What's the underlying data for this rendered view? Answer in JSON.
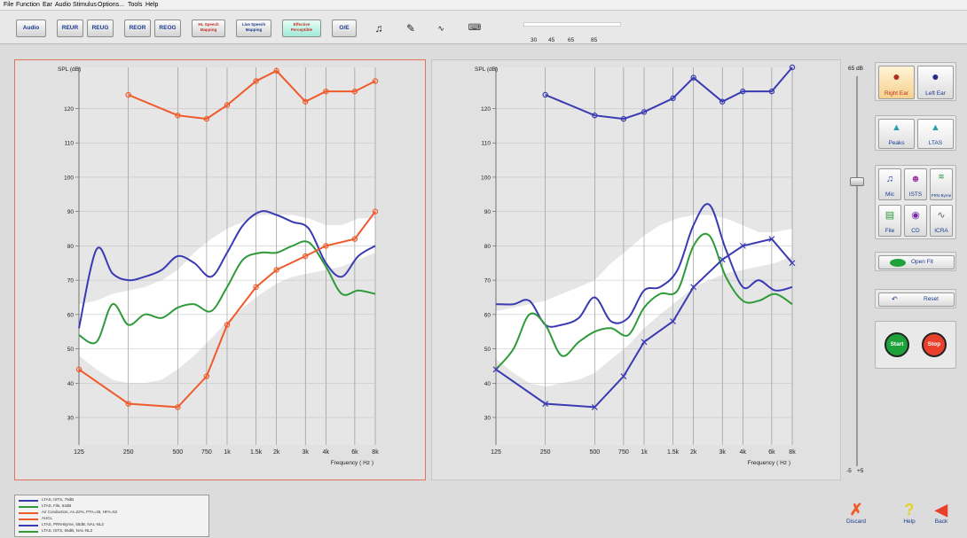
{
  "menu": [
    "File",
    "Function",
    "Ear",
    "Audio",
    "Stimulus",
    "Options...",
    "Tools",
    "Help"
  ],
  "toolbar": {
    "audio_label": "Audio",
    "reur_label": "REUR",
    "reug_label": "REUG",
    "reor_label": "REOR",
    "reog_label": "REOG",
    "hl_speech_mapping_label": "HL Speech Mapping",
    "live_speech_mapping_label": "Live Speech Mapping",
    "effective_perceptible_label": "Effective Perceptible",
    "oe_label": "O/E",
    "audiogram_levels": [
      "30",
      "45",
      "65",
      "85"
    ]
  },
  "left_chart": {
    "ylabel": "SPL (dB)",
    "xlabel": "Frequency ( Hz )"
  },
  "right_chart": {
    "ylabel": "SPL (dB)",
    "xlabel": "Frequency ( Hz )"
  },
  "chart_data": [
    {
      "type": "line",
      "ylabel": "SPL (dB)",
      "xlabel": "Frequency ( Hz )",
      "x_ticks": [
        "125",
        "250",
        "500",
        "750",
        "1k",
        "1.5k",
        "2k",
        "3k",
        "4k",
        "6k",
        "8k"
      ],
      "y_ticks": [
        30,
        40,
        50,
        60,
        70,
        80,
        90,
        100,
        110,
        120
      ],
      "ylim": [
        22,
        132
      ],
      "grid": true,
      "x_scale": "log",
      "shaded_band": {
        "x": [
          125,
          160,
          200,
          250,
          315,
          400,
          500,
          630,
          800,
          1000,
          1250,
          1600,
          2000,
          2500,
          3150,
          4000,
          5000,
          6300,
          8000
        ],
        "upper": [
          63,
          64,
          66,
          67,
          68,
          70,
          73,
          78,
          82,
          85,
          87,
          89,
          89,
          89,
          88,
          86,
          86,
          88,
          88
        ],
        "lower": [
          48,
          44,
          41,
          40,
          40,
          41,
          44,
          48,
          53,
          58,
          62,
          66,
          69,
          71,
          72,
          73,
          74,
          76,
          78
        ]
      },
      "series": [
        {
          "name": "LTAS, ISTS, 79dB",
          "color": "#3a3ab2",
          "x": [
            125,
            160,
            200,
            250,
            315,
            400,
            500,
            630,
            800,
            1000,
            1250,
            1600,
            2000,
            2500,
            3150,
            4000,
            5000,
            6300,
            8000
          ],
          "y": [
            56,
            79,
            72,
            70,
            71,
            73,
            77,
            75,
            71,
            78,
            86,
            90,
            89,
            87,
            85,
            75,
            71,
            77,
            80
          ]
        },
        {
          "name": "LTAS, File, 64dB",
          "color": "#2e9a3a",
          "x": [
            125,
            160,
            200,
            250,
            315,
            400,
            500,
            630,
            800,
            1000,
            1250,
            1600,
            2000,
            2500,
            3150,
            4000,
            5000,
            6300,
            8000
          ],
          "y": [
            54,
            52,
            63,
            57,
            60,
            59,
            62,
            63,
            61,
            68,
            76,
            78,
            78,
            80,
            81,
            74,
            66,
            67,
            66
          ]
        },
        {
          "name": "Air Conduction, AI=22%, PTA=45, HFA=52",
          "color": "#f05a2a",
          "x": [
            125,
            250,
            500,
            750,
            1000,
            1500,
            2000,
            3000,
            4000,
            6000,
            8000
          ],
          "y": [
            44,
            34,
            33,
            42,
            57,
            68,
            73,
            77,
            80,
            82,
            90
          ]
        },
        {
          "name": "AUCL",
          "color": "#f05a2a",
          "x": [
            250,
            500,
            750,
            1000,
            1500,
            2000,
            3000,
            4000,
            6000,
            8000
          ],
          "y": [
            124,
            118,
            117,
            121,
            128,
            131,
            122,
            125,
            125,
            128
          ]
        }
      ]
    },
    {
      "type": "line",
      "ylabel": "SPL (dB)",
      "xlabel": "Frequency ( Hz )",
      "x_ticks": [
        "125",
        "250",
        "500",
        "750",
        "1k",
        "1.5k",
        "2k",
        "3k",
        "4k",
        "6k",
        "8k"
      ],
      "y_ticks": [
        30,
        40,
        50,
        60,
        70,
        80,
        90,
        100,
        110,
        120
      ],
      "ylim": [
        22,
        132
      ],
      "grid": true,
      "x_scale": "log",
      "shaded_band": {
        "x": [
          125,
          160,
          200,
          250,
          315,
          400,
          500,
          630,
          800,
          1000,
          1250,
          1600,
          2000,
          2500,
          3150,
          4000,
          5000,
          6300,
          8000
        ],
        "upper": [
          61,
          62,
          63,
          64,
          66,
          68,
          70,
          75,
          79,
          83,
          86,
          88,
          89,
          89,
          88,
          86,
          84,
          84,
          85
        ],
        "lower": [
          47,
          43,
          40,
          39,
          40,
          41,
          43,
          47,
          51,
          56,
          60,
          64,
          68,
          70,
          72,
          73,
          74,
          75,
          77
        ]
      },
      "series": [
        {
          "name": "LTAS, PRN-Byrne, 55dB, NAL-NL2",
          "color": "#3a3ab2",
          "x": [
            125,
            160,
            200,
            250,
            315,
            400,
            500,
            630,
            800,
            1000,
            1250,
            1600,
            2000,
            2500,
            3150,
            4000,
            5000,
            6300,
            8000
          ],
          "y": [
            63,
            63,
            64,
            57,
            57,
            59,
            65,
            58,
            59,
            67,
            68,
            73,
            86,
            92,
            79,
            68,
            70,
            67,
            68
          ]
        },
        {
          "name": "LTAS, ISTS, 65dB, NAL-NL2",
          "color": "#2e9a3a",
          "x": [
            125,
            160,
            200,
            250,
            315,
            400,
            500,
            630,
            800,
            1000,
            1250,
            1600,
            2000,
            2500,
            3150,
            4000,
            5000,
            6300,
            8000
          ],
          "y": [
            44,
            50,
            60,
            57,
            48,
            52,
            55,
            56,
            54,
            62,
            66,
            67,
            80,
            83,
            71,
            64,
            64,
            66,
            63
          ]
        },
        {
          "name": "Air Conduction target",
          "color": "#3a3ab2",
          "x": [
            125,
            250,
            500,
            750,
            1000,
            1500,
            2000,
            3000,
            4000,
            6000,
            8000
          ],
          "y": [
            44,
            34,
            33,
            42,
            52,
            58,
            68,
            76,
            80,
            82,
            75
          ]
        },
        {
          "name": "AUCL",
          "color": "#3a3ab2",
          "x": [
            250,
            500,
            750,
            1000,
            1500,
            2000,
            3000,
            4000,
            6000,
            8000
          ],
          "y": [
            124,
            118,
            117,
            119,
            123,
            129,
            122,
            125,
            125,
            132
          ]
        }
      ]
    }
  ],
  "volume": {
    "top_label": "65 dB",
    "bottom_left": "-5",
    "bottom_right": "+5"
  },
  "side": {
    "right_ear": "Right Ear",
    "left_ear": "Left Ear",
    "peaks": "Peaks",
    "ltas": "LTAS",
    "mic": "Mic",
    "ists": "ISTS",
    "prn_byrne": "PRN-Byrne",
    "file": "File",
    "cd": "CD",
    "icra": "ICRA",
    "open_fit": "Open Fit",
    "reset": "Reset",
    "start": "Start",
    "stop": "Stop"
  },
  "legend": [
    {
      "label": "LTAS, ISTS, 79dB",
      "color": "#3a3ab2"
    },
    {
      "label": "LTAS, File, 64dB",
      "color": "#2e9a3a"
    },
    {
      "label": "Air Conduction, AI=22%, PTA=45, HFA=52",
      "color": "#f05a2a"
    },
    {
      "label": "AUCL",
      "color": "#f05a2a"
    },
    {
      "label": "LTAS, PRN-Byrne, 55dB, NAL-NL2",
      "color": "#3a3ab2"
    },
    {
      "label": "LTAS, ISTS, 65dB, NAL-NL2",
      "color": "#2e9a3a"
    }
  ],
  "bottom": {
    "discard": "Discard",
    "help": "Help",
    "back": "Back"
  }
}
